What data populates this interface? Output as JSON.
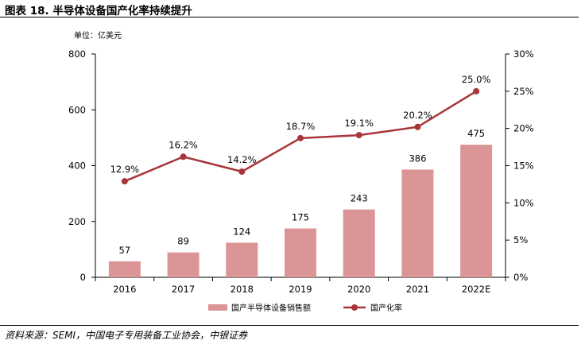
{
  "figure": {
    "title": "图表 18. 半导体设备国产化率持续提升",
    "unit": "单位：亿美元",
    "source": "资料来源：SEMI，中国电子专用装备工业协会，中银证券"
  },
  "colors": {
    "bar": "#dc9596",
    "line": "#a8353a",
    "axis": "#000000"
  },
  "chart_data": {
    "type": "bar+line",
    "categories": [
      "2016",
      "2017",
      "2018",
      "2019",
      "2020",
      "2021",
      "2022E"
    ],
    "series": [
      {
        "name": "国产半导体设备销售额",
        "type": "bar",
        "axis": "left",
        "values": [
          57,
          89,
          124,
          175,
          243,
          386,
          475
        ],
        "labels": [
          "57",
          "89",
          "124",
          "175",
          "243",
          "386",
          "475"
        ]
      },
      {
        "name": "国产化率",
        "type": "line",
        "axis": "right",
        "values": [
          12.9,
          16.2,
          14.2,
          18.7,
          19.1,
          20.2,
          25.0
        ],
        "labels": [
          "12.9%",
          "16.2%",
          "14.2%",
          "18.7%",
          "19.1%",
          "20.2%",
          "25.0%"
        ]
      }
    ],
    "y_left": {
      "range": [
        0,
        800
      ],
      "ticks": [
        "0",
        "200",
        "400",
        "600",
        "800"
      ]
    },
    "y_right": {
      "range": [
        0,
        30
      ],
      "ticks": [
        "0%",
        "5%",
        "10%",
        "15%",
        "20%",
        "25%",
        "30%"
      ]
    },
    "legend": "bottom-center",
    "grid": false
  }
}
